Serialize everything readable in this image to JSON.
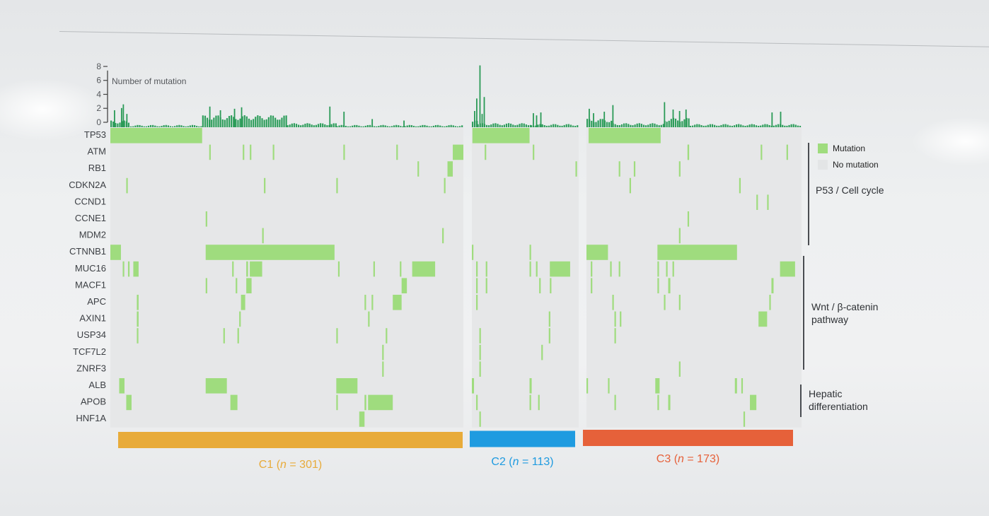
{
  "chart_data": {
    "type": "heatmap",
    "title": "",
    "bar_axis": {
      "label": "Number of mutation",
      "ticks": [
        "0",
        "2",
        "4",
        "6",
        "8"
      ],
      "ylim": [
        0,
        8
      ]
    },
    "genes": [
      "TP53",
      "ATM",
      "RB1",
      "CDKN2A",
      "CCND1",
      "CCNE1",
      "MDM2",
      "CTNNB1",
      "MUC16",
      "MACF1",
      "APC",
      "AXIN1",
      "USP34",
      "TCF7L2",
      "ZNRF3",
      "ALB",
      "APOB",
      "HNF1A"
    ],
    "gene_groups": [
      {
        "label": "P53 / Cell cycle",
        "genes": [
          "TP53",
          "ATM",
          "RB1",
          "CDKN2A",
          "CCND1",
          "CCNE1",
          "MDM2"
        ]
      },
      {
        "label": "Wnt / β-catenin pathway",
        "genes": [
          "CTNNB1",
          "MUC16",
          "MACF1",
          "APC",
          "AXIN1",
          "USP34",
          "TCF7L2",
          "ZNRF3"
        ]
      },
      {
        "label": "Hepatic differentiation",
        "genes": [
          "ALB",
          "APOB",
          "HNF1A"
        ]
      }
    ],
    "legend": [
      {
        "label": "Mutation",
        "color": "#9fdc7e"
      },
      {
        "label": "No mutation",
        "color": "#e3e5e6"
      }
    ],
    "clusters": [
      {
        "name": "C1",
        "n": "301",
        "color": "#e8ab3a",
        "label_parts": [
          "C1 (",
          "n",
          " = 301)"
        ],
        "bars": [
          [
            0,
            0.05,
            1
          ],
          [
            0.05,
            0.26,
            0.5
          ],
          [
            0.26,
            0.5,
            1.6
          ],
          [
            0.5,
            0.64,
            0.7
          ],
          [
            0.64,
            1.0,
            0.5
          ]
        ],
        "spikes": [
          [
            0.01,
            2.6
          ],
          [
            0.03,
            2.9
          ],
          [
            0.035,
            3.4
          ],
          [
            0.045,
            2.1
          ],
          [
            0.28,
            3.1
          ],
          [
            0.31,
            2.6
          ],
          [
            0.35,
            2.8
          ],
          [
            0.37,
            3
          ],
          [
            0.62,
            3.1
          ],
          [
            0.66,
            2.4
          ],
          [
            0.74,
            1.4
          ],
          [
            0.83,
            1.2
          ]
        ],
        "mutations": [
          {
            "gene": "TP53",
            "segments": [
              [
                0,
                0.26
              ]
            ]
          },
          {
            "gene": "ATM",
            "segments": [
              [
                0.28,
                0.283
              ],
              [
                0.375,
                0.378
              ],
              [
                0.395,
                0.398
              ],
              [
                0.46,
                0.464
              ],
              [
                0.66,
                0.664
              ],
              [
                0.81,
                0.814
              ],
              [
                0.97,
                1.0
              ]
            ]
          },
          {
            "gene": "RB1",
            "segments": [
              [
                0.87,
                0.874
              ],
              [
                0.955,
                0.97
              ]
            ]
          },
          {
            "gene": "CDKN2A",
            "segments": [
              [
                0.045,
                0.048
              ],
              [
                0.435,
                0.438
              ],
              [
                0.64,
                0.644
              ],
              [
                0.945,
                0.948
              ]
            ]
          },
          {
            "gene": "CCNE1",
            "segments": [
              [
                0.27,
                0.273
              ]
            ]
          },
          {
            "gene": "MDM2",
            "segments": [
              [
                0.43,
                0.433
              ],
              [
                0.94,
                0.943
              ]
            ]
          },
          {
            "gene": "CTNNB1",
            "segments": [
              [
                0,
                0.03
              ],
              [
                0.27,
                0.635
              ]
            ]
          },
          {
            "gene": "MUC16",
            "segments": [
              [
                0.035,
                0.038
              ],
              [
                0.05,
                0.053
              ],
              [
                0.065,
                0.08
              ],
              [
                0.345,
                0.348
              ],
              [
                0.385,
                0.39
              ],
              [
                0.395,
                0.43
              ],
              [
                0.645,
                0.648
              ],
              [
                0.745,
                0.748
              ],
              [
                0.82,
                0.823
              ],
              [
                0.855,
                0.92
              ]
            ]
          },
          {
            "gene": "MACF1",
            "segments": [
              [
                0.27,
                0.273
              ],
              [
                0.355,
                0.358
              ],
              [
                0.385,
                0.4
              ],
              [
                0.825,
                0.84
              ]
            ]
          },
          {
            "gene": "APC",
            "segments": [
              [
                0.075,
                0.08
              ],
              [
                0.37,
                0.382
              ],
              [
                0.72,
                0.723
              ],
              [
                0.74,
                0.743
              ],
              [
                0.8,
                0.825
              ]
            ]
          },
          {
            "gene": "AXIN1",
            "segments": [
              [
                0.075,
                0.08
              ],
              [
                0.365,
                0.368
              ],
              [
                0.73,
                0.733
              ]
            ]
          },
          {
            "gene": "USP34",
            "segments": [
              [
                0.075,
                0.078
              ],
              [
                0.32,
                0.323
              ],
              [
                0.36,
                0.363
              ],
              [
                0.64,
                0.643
              ],
              [
                0.78,
                0.784
              ]
            ]
          },
          {
            "gene": "TCF7L2",
            "segments": [
              [
                0.77,
                0.774
              ]
            ]
          },
          {
            "gene": "ZNRF3",
            "segments": [
              [
                0.77,
                0.774
              ]
            ]
          },
          {
            "gene": "ALB",
            "segments": [
              [
                0.025,
                0.04
              ],
              [
                0.27,
                0.33
              ],
              [
                0.64,
                0.7
              ]
            ]
          },
          {
            "gene": "APOB",
            "segments": [
              [
                0.045,
                0.06
              ],
              [
                0.34,
                0.36
              ],
              [
                0.64,
                0.643
              ],
              [
                0.72,
                0.725
              ],
              [
                0.73,
                0.8
              ]
            ]
          },
          {
            "gene": "HNF1A",
            "segments": [
              [
                0.705,
                0.72
              ]
            ]
          }
        ]
      },
      {
        "name": "C2",
        "n": "113",
        "color": "#1f9be0",
        "label_parts": [
          "C2 (",
          "n",
          " = 113)"
        ],
        "bars": [
          [
            0,
            0.05,
            1
          ],
          [
            0.05,
            0.55,
            0.7
          ],
          [
            0.55,
            1.0,
            0.6
          ]
        ],
        "spikes": [
          [
            0.02,
            2.5
          ],
          [
            0.04,
            4.2
          ],
          [
            0.07,
            8.7
          ],
          [
            0.09,
            2.1
          ],
          [
            0.11,
            4.4
          ],
          [
            0.57,
            2.2
          ],
          [
            0.6,
            1.9
          ],
          [
            0.64,
            2.3
          ]
        ],
        "mutations": [
          {
            "gene": "TP53",
            "segments": [
              [
                0.005,
                0.54
              ]
            ]
          },
          {
            "gene": "ATM",
            "segments": [
              [
                0.12,
                0.125
              ],
              [
                0.57,
                0.575
              ]
            ]
          },
          {
            "gene": "RB1",
            "segments": [
              [
                0.97,
                0.975
              ]
            ]
          },
          {
            "gene": "CTNNB1",
            "segments": [
              [
                0,
                0.005
              ],
              [
                0.54,
                0.545
              ]
            ]
          },
          {
            "gene": "MUC16",
            "segments": [
              [
                0.04,
                0.045
              ],
              [
                0.13,
                0.135
              ],
              [
                0.54,
                0.545
              ],
              [
                0.6,
                0.61
              ],
              [
                0.73,
                0.92
              ]
            ]
          },
          {
            "gene": "MACF1",
            "segments": [
              [
                0.04,
                0.045
              ],
              [
                0.13,
                0.135
              ],
              [
                0.63,
                0.635
              ],
              [
                0.73,
                0.74
              ]
            ]
          },
          {
            "gene": "APC",
            "segments": [
              [
                0.04,
                0.05
              ]
            ]
          },
          {
            "gene": "AXIN1",
            "segments": [
              [
                0.72,
                0.725
              ]
            ]
          },
          {
            "gene": "USP34",
            "segments": [
              [
                0.07,
                0.075
              ],
              [
                0.72,
                0.725
              ]
            ]
          },
          {
            "gene": "TCF7L2",
            "segments": [
              [
                0.07,
                0.075
              ],
              [
                0.65,
                0.655
              ]
            ]
          },
          {
            "gene": "ZNRF3",
            "segments": [
              [
                0.07,
                0.075
              ]
            ]
          },
          {
            "gene": "ALB",
            "segments": [
              [
                0,
                0.02
              ],
              [
                0.54,
                0.56
              ]
            ]
          },
          {
            "gene": "APOB",
            "segments": [
              [
                0.04,
                0.045
              ],
              [
                0.54,
                0.545
              ],
              [
                0.62,
                0.63
              ]
            ]
          },
          {
            "gene": "HNF1A",
            "segments": [
              [
                0.07,
                0.075
              ]
            ]
          }
        ]
      },
      {
        "name": "C3",
        "n": "173",
        "color": "#e6613a",
        "label_parts": [
          "C3 (",
          "n",
          " = 173)"
        ],
        "bars": [
          [
            0,
            0.12,
            1.2
          ],
          [
            0.12,
            0.36,
            0.7
          ],
          [
            0.36,
            0.48,
            1.3
          ],
          [
            0.48,
            1.0,
            0.6
          ]
        ],
        "spikes": [
          [
            0.01,
            2.8
          ],
          [
            0.03,
            2.2
          ],
          [
            0.08,
            2.4
          ],
          [
            0.12,
            3.3
          ],
          [
            0.36,
            3.7
          ],
          [
            0.4,
            2.7
          ],
          [
            0.43,
            2.5
          ],
          [
            0.46,
            2.7
          ],
          [
            0.86,
            2.3
          ],
          [
            0.9,
            2.4
          ]
        ],
        "mutations": [
          {
            "gene": "TP53",
            "segments": [
              [
                0.01,
                0.345
              ]
            ]
          },
          {
            "gene": "ATM",
            "segments": [
              [
                0.47,
                0.475
              ],
              [
                0.47,
                0.474
              ],
              [
                0.81,
                0.815
              ],
              [
                0.93,
                0.935
              ]
            ]
          },
          {
            "gene": "RB1",
            "segments": [
              [
                0.15,
                0.155
              ],
              [
                0.22,
                0.225
              ],
              [
                0.43,
                0.435
              ]
            ]
          },
          {
            "gene": "CDKN2A",
            "segments": [
              [
                0.2,
                0.205
              ],
              [
                0.71,
                0.715
              ]
            ]
          },
          {
            "gene": "CCND1",
            "segments": [
              [
                0.79,
                0.795
              ],
              [
                0.84,
                0.845
              ]
            ]
          },
          {
            "gene": "CCNE1",
            "segments": [
              [
                0.47,
                0.475
              ]
            ]
          },
          {
            "gene": "MDM2",
            "segments": [
              [
                0.43,
                0.435
              ]
            ]
          },
          {
            "gene": "CTNNB1",
            "segments": [
              [
                0,
                0.1
              ],
              [
                0.33,
                0.7
              ]
            ]
          },
          {
            "gene": "MUC16",
            "segments": [
              [
                0.02,
                0.025
              ],
              [
                0.11,
                0.115
              ],
              [
                0.15,
                0.155
              ],
              [
                0.33,
                0.335
              ],
              [
                0.37,
                0.375
              ],
              [
                0.4,
                0.405
              ],
              [
                0.9,
                0.97
              ]
            ]
          },
          {
            "gene": "MACF1",
            "segments": [
              [
                0.02,
                0.025
              ],
              [
                0.33,
                0.335
              ],
              [
                0.38,
                0.39
              ],
              [
                0.86,
                0.87
              ]
            ]
          },
          {
            "gene": "APC",
            "segments": [
              [
                0.12,
                0.125
              ],
              [
                0.36,
                0.365
              ],
              [
                0.43,
                0.435
              ],
              [
                0.85,
                0.855
              ]
            ]
          },
          {
            "gene": "AXIN1",
            "segments": [
              [
                0.13,
                0.135
              ],
              [
                0.155,
                0.16
              ],
              [
                0.8,
                0.84
              ]
            ]
          },
          {
            "gene": "USP34",
            "segments": [
              [
                0.13,
                0.135
              ]
            ]
          },
          {
            "gene": "ZNRF3",
            "segments": [
              [
                0.43,
                0.435
              ]
            ]
          },
          {
            "gene": "ALB",
            "segments": [
              [
                0,
                0.005
              ],
              [
                0.1,
                0.105
              ],
              [
                0.32,
                0.34
              ],
              [
                0.69,
                0.7
              ],
              [
                0.72,
                0.725
              ]
            ]
          },
          {
            "gene": "APOB",
            "segments": [
              [
                0.13,
                0.135
              ],
              [
                0.33,
                0.335
              ],
              [
                0.38,
                0.39
              ],
              [
                0.76,
                0.79
              ]
            ]
          },
          {
            "gene": "HNF1A",
            "segments": [
              [
                0.73,
                0.735
              ]
            ]
          }
        ]
      }
    ]
  }
}
